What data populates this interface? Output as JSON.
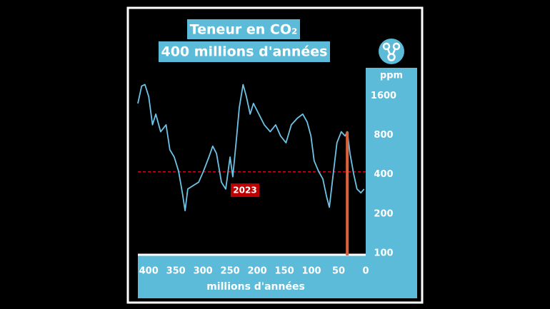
{
  "chart_data": {
    "type": "line",
    "title": "Teneur en CO₂",
    "subtitle": "400 millions d'années",
    "ylabel": "ppm",
    "xlabel": "millions d'années",
    "x": [
      420,
      413,
      407,
      400,
      393,
      387,
      378,
      368,
      361,
      353,
      345,
      338,
      333,
      328,
      318,
      308,
      299,
      289,
      282,
      275,
      266,
      258,
      250,
      245,
      239,
      233,
      226,
      220,
      213,
      207,
      197,
      187,
      176,
      166,
      157,
      147,
      137,
      126,
      116,
      108,
      101,
      95,
      87,
      79,
      72,
      67,
      61,
      53,
      45,
      38,
      34,
      29,
      22,
      16,
      9,
      3
    ],
    "values": [
      1400,
      1900,
      1950,
      1580,
      960,
      1160,
      850,
      960,
      620,
      545,
      425,
      290,
      212,
      310,
      330,
      350,
      425,
      545,
      660,
      580,
      350,
      310,
      545,
      385,
      700,
      1300,
      1950,
      1580,
      1160,
      1400,
      1160,
      960,
      850,
      960,
      790,
      700,
      960,
      1080,
      1160,
      1010,
      790,
      510,
      425,
      370,
      270,
      225,
      370,
      700,
      850,
      790,
      850,
      580,
      400,
      310,
      290,
      310
    ],
    "color": "#6ec3e6",
    "xlim": [
      420,
      0
    ],
    "ylim": [
      100,
      2400
    ],
    "log_y": true,
    "xticks": [
      400,
      350,
      300,
      250,
      200,
      150,
      100,
      50,
      0
    ],
    "yticks": [
      100,
      200,
      400,
      800,
      1600
    ],
    "reference": {
      "value": 420,
      "label": "2023",
      "color": "#d0021b"
    },
    "highlight": {
      "x": 34,
      "y": 850,
      "color": "#e0603a"
    }
  }
}
